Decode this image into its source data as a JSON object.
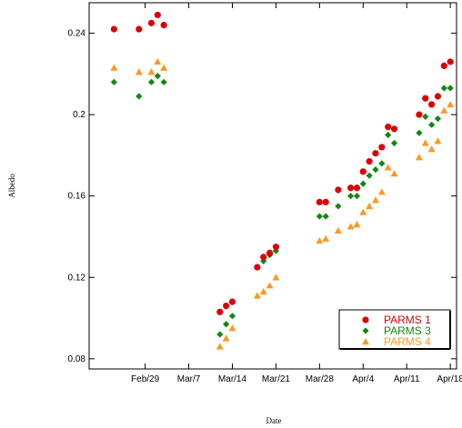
{
  "chart_data": {
    "type": "scatter",
    "title": "",
    "xlabel": "Date",
    "ylabel": "Albedo",
    "x_axis_type": "date",
    "xlim": [
      "2016-02-20",
      "2016-04-19"
    ],
    "ylim": [
      0.075,
      0.255
    ],
    "x_ticks": [
      {
        "date": "2016-02-29",
        "label": "Feb/29"
      },
      {
        "date": "2016-03-07",
        "label": "Mar/7"
      },
      {
        "date": "2016-03-14",
        "label": "Mar/14"
      },
      {
        "date": "2016-03-21",
        "label": "Mar/21"
      },
      {
        "date": "2016-03-28",
        "label": "Mar/28"
      },
      {
        "date": "2016-04-04",
        "label": "Apr/4"
      },
      {
        "date": "2016-04-11",
        "label": "Apr/11"
      },
      {
        "date": "2016-04-18",
        "label": "Apr/18"
      }
    ],
    "y_ticks": [
      {
        "value": 0.08,
        "label": "0.08"
      },
      {
        "value": 0.12,
        "label": "0.12"
      },
      {
        "value": 0.16,
        "label": "0.16"
      },
      {
        "value": 0.2,
        "label": "0.2"
      },
      {
        "value": 0.24,
        "label": "0.24"
      }
    ],
    "grid": false,
    "legend_position": "bottom-right",
    "series": [
      {
        "name": "PARMS 1",
        "color": "#dd0000",
        "marker": "circle",
        "points": [
          [
            "2016-02-24",
            0.242
          ],
          [
            "2016-02-28",
            0.242
          ],
          [
            "2016-03-01",
            0.245
          ],
          [
            "2016-03-02",
            0.249
          ],
          [
            "2016-03-03",
            0.244
          ],
          [
            "2016-03-12",
            0.103
          ],
          [
            "2016-03-13",
            0.106
          ],
          [
            "2016-03-14",
            0.108
          ],
          [
            "2016-03-18",
            0.125
          ],
          [
            "2016-03-19",
            0.13
          ],
          [
            "2016-03-20",
            0.132
          ],
          [
            "2016-03-21",
            0.135
          ],
          [
            "2016-03-28",
            0.157
          ],
          [
            "2016-03-29",
            0.157
          ],
          [
            "2016-03-31",
            0.163
          ],
          [
            "2016-04-02",
            0.164
          ],
          [
            "2016-04-03",
            0.164
          ],
          [
            "2016-04-04",
            0.172
          ],
          [
            "2016-04-05",
            0.177
          ],
          [
            "2016-04-06",
            0.181
          ],
          [
            "2016-04-07",
            0.184
          ],
          [
            "2016-04-08",
            0.194
          ],
          [
            "2016-04-09",
            0.193
          ],
          [
            "2016-04-13",
            0.2
          ],
          [
            "2016-04-14",
            0.208
          ],
          [
            "2016-04-15",
            0.205
          ],
          [
            "2016-04-16",
            0.209
          ],
          [
            "2016-04-17",
            0.224
          ],
          [
            "2016-04-18",
            0.226
          ]
        ]
      },
      {
        "name": "PARMS 3",
        "color": "#118811",
        "marker": "diamond",
        "points": [
          [
            "2016-02-24",
            0.216
          ],
          [
            "2016-02-28",
            0.209
          ],
          [
            "2016-03-01",
            0.216
          ],
          [
            "2016-03-02",
            0.219
          ],
          [
            "2016-03-03",
            0.216
          ],
          [
            "2016-03-12",
            0.092
          ],
          [
            "2016-03-13",
            0.097
          ],
          [
            "2016-03-14",
            0.101
          ],
          [
            "2016-03-18",
            0.125
          ],
          [
            "2016-03-19",
            0.128
          ],
          [
            "2016-03-20",
            0.131
          ],
          [
            "2016-03-21",
            0.133
          ],
          [
            "2016-03-28",
            0.15
          ],
          [
            "2016-03-29",
            0.15
          ],
          [
            "2016-03-31",
            0.155
          ],
          [
            "2016-04-02",
            0.16
          ],
          [
            "2016-04-03",
            0.16
          ],
          [
            "2016-04-04",
            0.166
          ],
          [
            "2016-04-05",
            0.17
          ],
          [
            "2016-04-06",
            0.173
          ],
          [
            "2016-04-07",
            0.176
          ],
          [
            "2016-04-08",
            0.19
          ],
          [
            "2016-04-09",
            0.186
          ],
          [
            "2016-04-13",
            0.191
          ],
          [
            "2016-04-14",
            0.199
          ],
          [
            "2016-04-15",
            0.195
          ],
          [
            "2016-04-16",
            0.198
          ],
          [
            "2016-04-17",
            0.213
          ],
          [
            "2016-04-18",
            0.213
          ]
        ]
      },
      {
        "name": "PARMS 4",
        "color": "#ff9922",
        "marker": "triangle",
        "points": [
          [
            "2016-02-24",
            0.223
          ],
          [
            "2016-02-28",
            0.221
          ],
          [
            "2016-03-01",
            0.221
          ],
          [
            "2016-03-02",
            0.226
          ],
          [
            "2016-03-03",
            0.223
          ],
          [
            "2016-03-12",
            0.086
          ],
          [
            "2016-03-13",
            0.09
          ],
          [
            "2016-03-14",
            0.095
          ],
          [
            "2016-03-18",
            0.111
          ],
          [
            "2016-03-19",
            0.113
          ],
          [
            "2016-03-20",
            0.116
          ],
          [
            "2016-03-21",
            0.12
          ],
          [
            "2016-03-28",
            0.138
          ],
          [
            "2016-03-29",
            0.139
          ],
          [
            "2016-03-31",
            0.143
          ],
          [
            "2016-04-02",
            0.145
          ],
          [
            "2016-04-03",
            0.146
          ],
          [
            "2016-04-04",
            0.152
          ],
          [
            "2016-04-05",
            0.155
          ],
          [
            "2016-04-06",
            0.158
          ],
          [
            "2016-04-07",
            0.162
          ],
          [
            "2016-04-08",
            0.174
          ],
          [
            "2016-04-09",
            0.171
          ],
          [
            "2016-04-13",
            0.179
          ],
          [
            "2016-04-14",
            0.186
          ],
          [
            "2016-04-15",
            0.183
          ],
          [
            "2016-04-16",
            0.187
          ],
          [
            "2016-04-17",
            0.202
          ],
          [
            "2016-04-18",
            0.205
          ]
        ]
      }
    ]
  }
}
